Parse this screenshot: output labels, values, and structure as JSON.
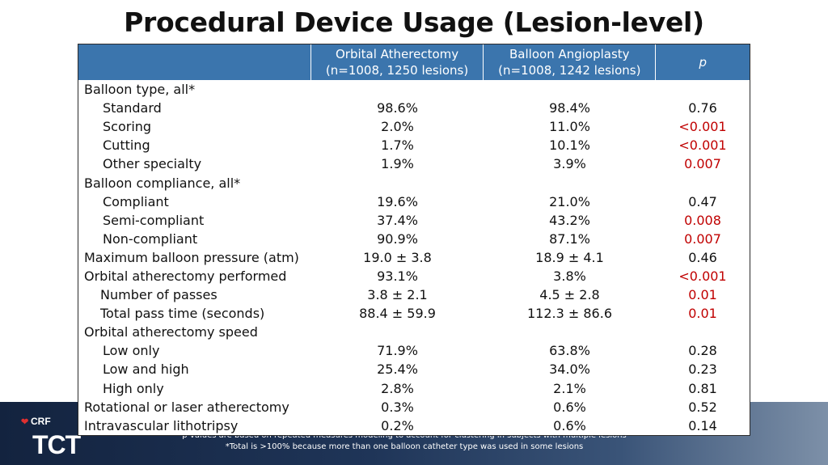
{
  "title": "Procedural Device Usage (Lesion-level)",
  "header": {
    "col1_line1": "Orbital Atherectomy",
    "col1_line2": "(n=1008, 1250 lesions)",
    "col2_line1": "Balloon Angioplasty",
    "col2_line2": "(n=1008, 1242 lesions)",
    "col3": "p"
  },
  "rows": [
    {
      "label": "Balloon type, all*",
      "oa": "",
      "ba": "",
      "p": ""
    },
    {
      "label": "Standard",
      "oa": "98.6%",
      "ba": "98.4%",
      "p": "0.76"
    },
    {
      "label": "Scoring",
      "oa": "2.0%",
      "ba": "11.0%",
      "p": "<0.001"
    },
    {
      "label": "Cutting",
      "oa": "1.7%",
      "ba": "10.1%",
      "p": "<0.001"
    },
    {
      "label": "Other specialty",
      "oa": "1.9%",
      "ba": "3.9%",
      "p": "0.007"
    },
    {
      "label": "Balloon compliance, all*",
      "oa": "",
      "ba": "",
      "p": ""
    },
    {
      "label": "Compliant",
      "oa": "19.6%",
      "ba": "21.0%",
      "p": "0.47"
    },
    {
      "label": "Semi-compliant",
      "oa": "37.4%",
      "ba": "43.2%",
      "p": "0.008"
    },
    {
      "label": "Non-compliant",
      "oa": "90.9%",
      "ba": "87.1%",
      "p": "0.007"
    },
    {
      "label": "Maximum balloon pressure (atm)",
      "oa": "19.0 ± 3.8",
      "ba": "18.9 ± 4.1",
      "p": "0.46"
    },
    {
      "label": "Orbital atherectomy performed",
      "oa": "93.1%",
      "ba": "3.8%",
      "p": "<0.001"
    },
    {
      "label": "Number of passes",
      "oa": "3.8 ± 2.1",
      "ba": "4.5 ± 2.8",
      "p": "0.01"
    },
    {
      "label": "Total pass time (seconds)",
      "oa": "88.4 ± 59.9",
      "ba": "112.3 ± 86.6",
      "p": "0.01"
    },
    {
      "label": "Orbital atherectomy speed",
      "oa": "",
      "ba": "",
      "p": ""
    },
    {
      "label": "Low only",
      "oa": "71.9%",
      "ba": "63.8%",
      "p": "0.28"
    },
    {
      "label": "Low and high",
      "oa": "25.4%",
      "ba": "34.0%",
      "p": "0.23"
    },
    {
      "label": "High only",
      "oa": "2.8%",
      "ba": "2.1%",
      "p": "0.81"
    },
    {
      "label": "Rotational or laser atherectomy",
      "oa": "0.3%",
      "ba": "0.6%",
      "p": "0.52"
    },
    {
      "label": "Intravascular lithotripsy",
      "oa": "0.2%",
      "ba": "0.6%",
      "p": "0.14"
    }
  ],
  "footnotes": {
    "line1": "p-values are based on repeated measures modeling to account for clustering in subjects with multiple lesions",
    "line2": "*Total is >100% because more than one balloon catheter type was used in some lesions"
  },
  "logo": {
    "crf": "CRF",
    "tct": "TCT"
  },
  "colors": {
    "header_bg": "#3b75ad",
    "significant": "#c00000",
    "band": "#1f3558"
  }
}
